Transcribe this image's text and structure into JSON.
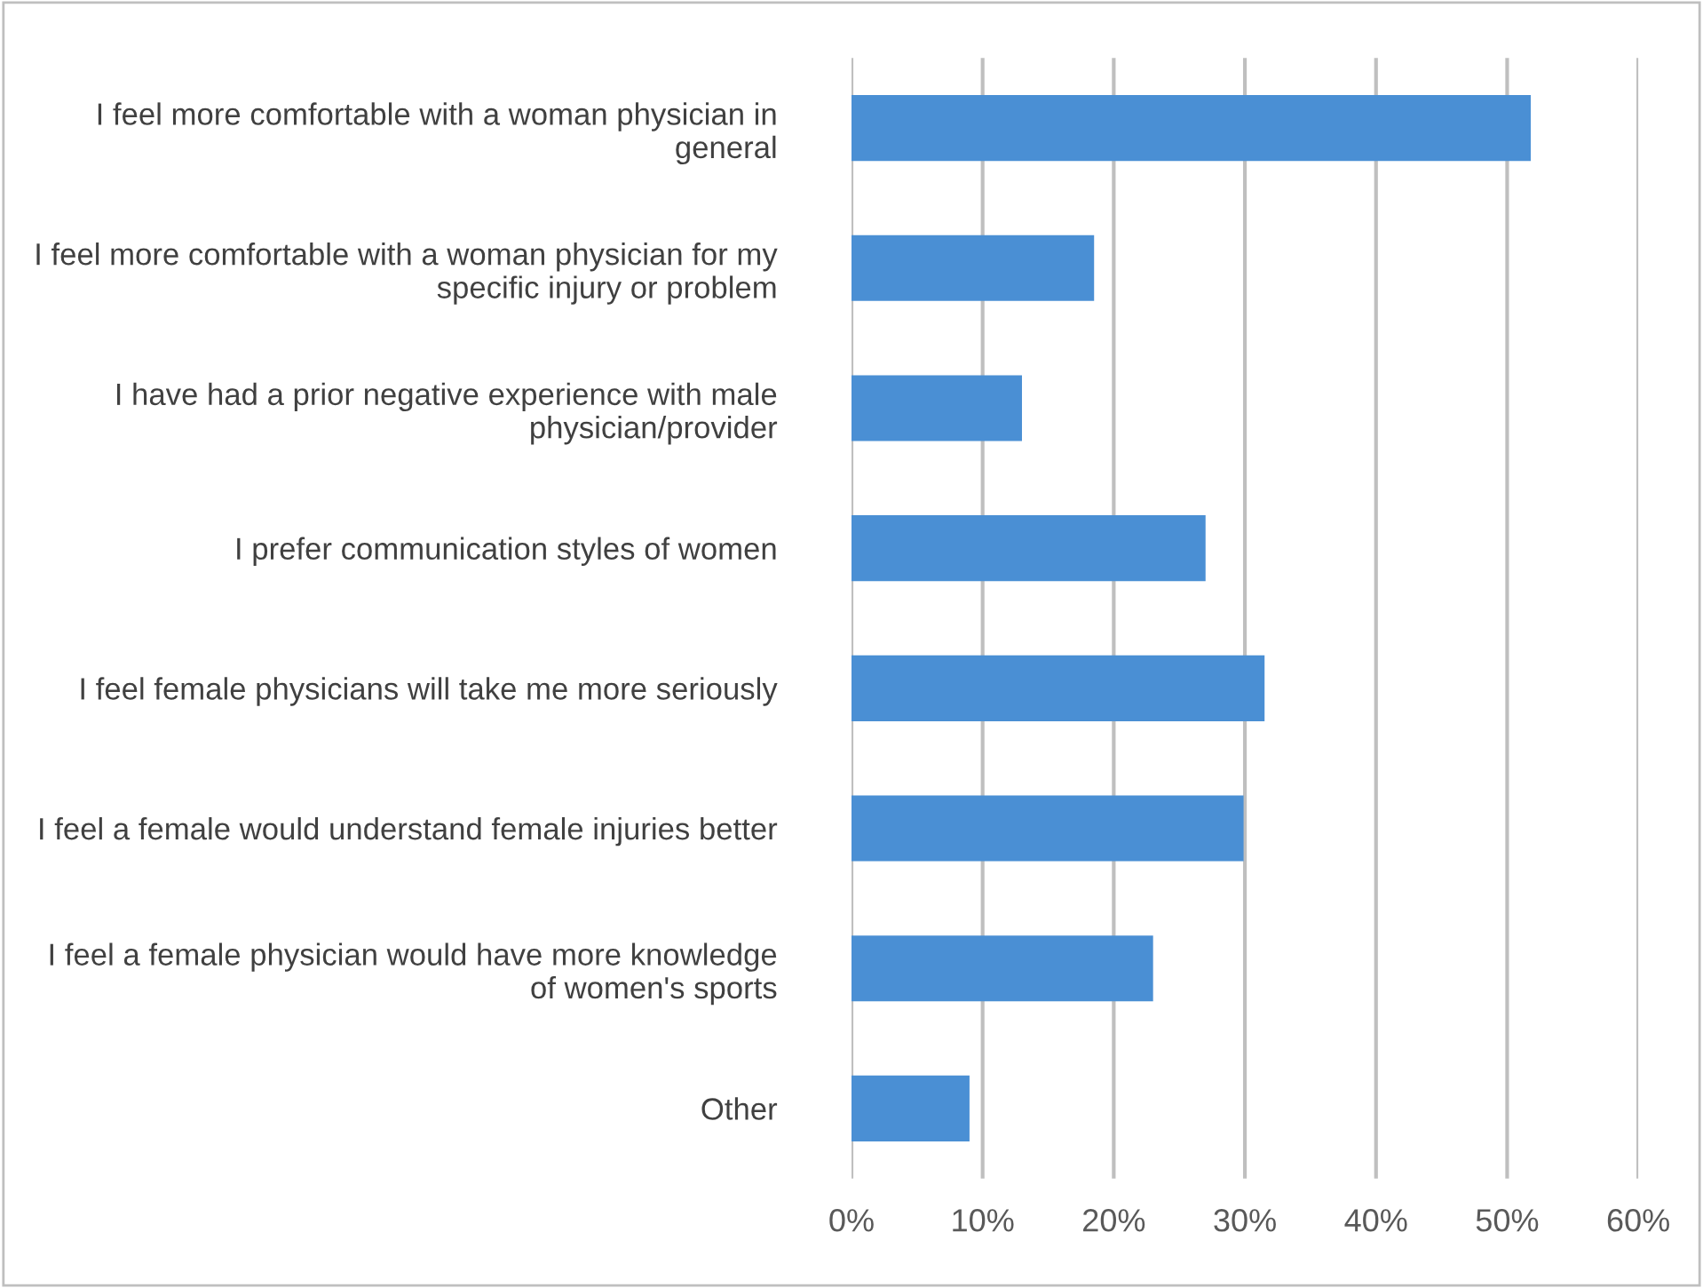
{
  "chart_data": {
    "type": "bar",
    "orientation": "horizontal",
    "categories": [
      "I feel more comfortable with a woman physician in general",
      "I feel more comfortable with a woman physician for my specific injury or problem",
      "I have had a prior negative experience with male physician/provider",
      "I prefer communication styles of women",
      "I feel female physicians will take me more seriously",
      "I feel a female would understand female injuries better",
      "I feel a female physician would have more knowledge of women's sports",
      "Other"
    ],
    "values": [
      51.8,
      18.5,
      13.0,
      27.0,
      31.5,
      29.9,
      23.0,
      9.0
    ],
    "color": "#4a8fd4",
    "xlim": [
      0,
      60
    ],
    "xticks": [
      {
        "value": 0,
        "label": "0%"
      },
      {
        "value": 10,
        "label": "10%"
      },
      {
        "value": 20,
        "label": "20%"
      },
      {
        "value": 30,
        "label": "30%"
      },
      {
        "value": 40,
        "label": "40%"
      },
      {
        "value": 50,
        "label": "50%"
      },
      {
        "value": 60,
        "label": "60%"
      }
    ],
    "grid": "x"
  }
}
